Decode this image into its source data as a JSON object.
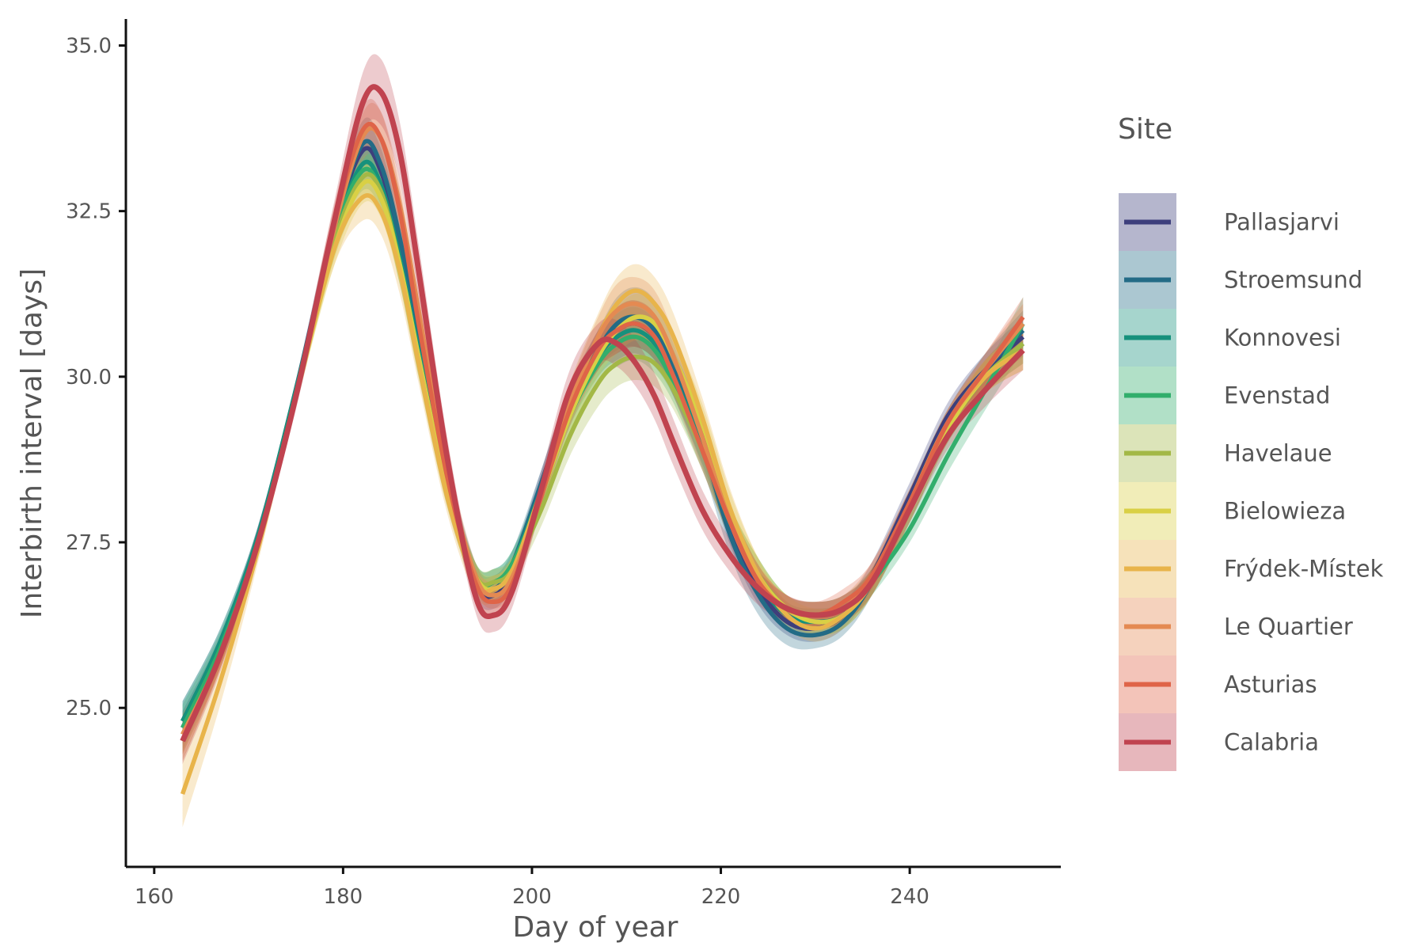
{
  "chart_data": {
    "type": "line",
    "xlabel": "Day of year",
    "ylabel": "Interbirth interval [days]",
    "xlim": [
      157,
      256
    ],
    "ylim": [
      22.6,
      35.4
    ],
    "x_ticks": [
      160,
      180,
      200,
      220,
      240
    ],
    "y_ticks": [
      25.0,
      27.5,
      30.0,
      32.5,
      35.0
    ],
    "x_tick_labels": [
      "160",
      "180",
      "200",
      "220",
      "240"
    ],
    "y_tick_labels": [
      "25.0",
      "27.5",
      "30.0",
      "32.5",
      "35.0"
    ],
    "grid": false,
    "legend": {
      "title": "Site",
      "position": "right"
    },
    "x": [
      163,
      167,
      171,
      175,
      179,
      182,
      184,
      186,
      188,
      191,
      194,
      196,
      198,
      201,
      204,
      207,
      209,
      211,
      213,
      215,
      218,
      221,
      224,
      227,
      230,
      233,
      236,
      240,
      244,
      248,
      252
    ],
    "series": [
      {
        "name": "Pallasjarvi",
        "color": "#3d3f7c",
        "values": [
          24.7,
          25.9,
          27.6,
          29.8,
          32.2,
          33.4,
          33.1,
          32.0,
          30.5,
          28.4,
          26.9,
          26.7,
          27.1,
          28.4,
          29.6,
          30.4,
          30.7,
          30.8,
          30.6,
          30.1,
          29.1,
          27.7,
          26.8,
          26.3,
          26.2,
          26.4,
          27.0,
          28.2,
          29.4,
          30.1,
          30.6
        ],
        "band": [
          0.25,
          0.2,
          0.15,
          0.15,
          0.25,
          0.35,
          0.35,
          0.3,
          0.3,
          0.25,
          0.2,
          0.2,
          0.2,
          0.2,
          0.25,
          0.3,
          0.35,
          0.35,
          0.35,
          0.3,
          0.3,
          0.25,
          0.25,
          0.2,
          0.2,
          0.2,
          0.2,
          0.2,
          0.2,
          0.25,
          0.3
        ]
      },
      {
        "name": "Stroemsund",
        "color": "#236b86",
        "values": [
          24.8,
          26.0,
          27.6,
          29.8,
          32.2,
          33.5,
          33.2,
          32.1,
          30.6,
          28.5,
          27.0,
          26.8,
          27.2,
          28.4,
          29.6,
          30.4,
          30.8,
          30.9,
          30.7,
          30.1,
          29.0,
          27.6,
          26.7,
          26.2,
          26.1,
          26.3,
          26.9,
          28.1,
          29.3,
          30.1,
          30.7
        ],
        "band": [
          0.3,
          0.2,
          0.15,
          0.15,
          0.25,
          0.35,
          0.35,
          0.3,
          0.3,
          0.25,
          0.2,
          0.2,
          0.2,
          0.2,
          0.25,
          0.3,
          0.4,
          0.45,
          0.45,
          0.4,
          0.35,
          0.3,
          0.3,
          0.25,
          0.2,
          0.2,
          0.2,
          0.2,
          0.2,
          0.25,
          0.3
        ]
      },
      {
        "name": "Konnovesi",
        "color": "#16917c",
        "values": [
          24.8,
          26.0,
          27.6,
          29.8,
          32.1,
          33.2,
          32.9,
          31.8,
          30.4,
          28.4,
          27.0,
          26.9,
          27.2,
          28.3,
          29.5,
          30.3,
          30.6,
          30.7,
          30.5,
          30.0,
          29.0,
          27.8,
          26.9,
          26.4,
          26.3,
          26.4,
          26.9,
          28.0,
          29.2,
          30.0,
          30.5
        ],
        "band": [
          0.3,
          0.2,
          0.15,
          0.15,
          0.25,
          0.3,
          0.3,
          0.3,
          0.3,
          0.25,
          0.2,
          0.2,
          0.2,
          0.2,
          0.25,
          0.3,
          0.35,
          0.35,
          0.35,
          0.3,
          0.3,
          0.25,
          0.25,
          0.2,
          0.2,
          0.2,
          0.2,
          0.2,
          0.2,
          0.25,
          0.3
        ]
      },
      {
        "name": "Evenstad",
        "color": "#32ae6c",
        "values": [
          24.7,
          25.9,
          27.5,
          29.7,
          32.1,
          33.1,
          32.8,
          31.7,
          30.3,
          28.3,
          27.0,
          26.9,
          27.2,
          28.2,
          29.4,
          30.2,
          30.5,
          30.6,
          30.4,
          29.9,
          28.9,
          27.8,
          27.0,
          26.5,
          26.4,
          26.5,
          26.9,
          27.7,
          28.8,
          29.8,
          30.8
        ],
        "band": [
          0.35,
          0.25,
          0.15,
          0.15,
          0.25,
          0.3,
          0.3,
          0.3,
          0.3,
          0.25,
          0.2,
          0.2,
          0.2,
          0.2,
          0.25,
          0.3,
          0.35,
          0.35,
          0.35,
          0.3,
          0.3,
          0.25,
          0.25,
          0.2,
          0.2,
          0.2,
          0.2,
          0.2,
          0.25,
          0.3,
          0.4
        ]
      },
      {
        "name": "Havelaue",
        "color": "#a3b846",
        "values": [
          24.6,
          25.8,
          27.5,
          29.7,
          32.0,
          33.0,
          32.8,
          31.7,
          30.3,
          28.3,
          27.0,
          26.9,
          27.1,
          28.0,
          29.1,
          29.9,
          30.2,
          30.3,
          30.2,
          29.8,
          28.9,
          27.8,
          27.0,
          26.5,
          26.4,
          26.5,
          26.9,
          28.0,
          29.2,
          30.0,
          30.5
        ],
        "band": [
          0.3,
          0.2,
          0.15,
          0.15,
          0.25,
          0.3,
          0.3,
          0.3,
          0.3,
          0.25,
          0.2,
          0.2,
          0.2,
          0.25,
          0.3,
          0.35,
          0.35,
          0.35,
          0.35,
          0.3,
          0.3,
          0.25,
          0.25,
          0.2,
          0.2,
          0.2,
          0.2,
          0.2,
          0.2,
          0.25,
          0.3
        ]
      },
      {
        "name": "Bielowieza",
        "color": "#d9d045",
        "values": [
          24.5,
          25.8,
          27.5,
          29.7,
          31.9,
          32.9,
          32.7,
          31.7,
          30.3,
          28.3,
          27.0,
          26.8,
          27.1,
          28.2,
          29.4,
          30.3,
          30.7,
          30.9,
          30.8,
          30.3,
          29.3,
          28.0,
          27.0,
          26.5,
          26.3,
          26.4,
          26.9,
          28.0,
          29.2,
          30.0,
          30.4
        ],
        "band": [
          0.3,
          0.2,
          0.15,
          0.15,
          0.25,
          0.3,
          0.3,
          0.3,
          0.3,
          0.25,
          0.2,
          0.2,
          0.2,
          0.2,
          0.25,
          0.3,
          0.35,
          0.35,
          0.35,
          0.35,
          0.3,
          0.25,
          0.25,
          0.2,
          0.2,
          0.2,
          0.2,
          0.2,
          0.2,
          0.25,
          0.3
        ]
      },
      {
        "name": "Frýdek-Místek",
        "color": "#e8b44a",
        "values": [
          23.7,
          25.4,
          27.4,
          29.7,
          31.9,
          32.7,
          32.5,
          31.6,
          30.2,
          28.2,
          26.9,
          26.8,
          27.1,
          28.3,
          29.6,
          30.6,
          31.1,
          31.3,
          31.1,
          30.6,
          29.4,
          28.0,
          27.0,
          26.4,
          26.2,
          26.4,
          26.9,
          28.1,
          29.3,
          30.0,
          30.4
        ],
        "band": [
          0.5,
          0.35,
          0.2,
          0.15,
          0.25,
          0.35,
          0.35,
          0.35,
          0.3,
          0.25,
          0.2,
          0.2,
          0.2,
          0.2,
          0.3,
          0.35,
          0.4,
          0.4,
          0.4,
          0.35,
          0.3,
          0.3,
          0.25,
          0.2,
          0.2,
          0.2,
          0.2,
          0.2,
          0.2,
          0.25,
          0.3
        ]
      },
      {
        "name": "Le Quartier",
        "color": "#e48a52",
        "values": [
          24.6,
          25.8,
          27.5,
          29.7,
          32.2,
          33.6,
          33.6,
          32.6,
          31.0,
          28.6,
          27.0,
          26.7,
          27.0,
          28.2,
          29.6,
          30.6,
          31.0,
          31.1,
          30.9,
          30.3,
          29.1,
          27.8,
          26.9,
          26.5,
          26.4,
          26.5,
          27.0,
          28.1,
          29.3,
          30.1,
          30.8
        ],
        "band": [
          0.3,
          0.2,
          0.15,
          0.15,
          0.25,
          0.35,
          0.4,
          0.35,
          0.3,
          0.25,
          0.2,
          0.2,
          0.2,
          0.2,
          0.25,
          0.3,
          0.4,
          0.4,
          0.4,
          0.35,
          0.3,
          0.25,
          0.25,
          0.2,
          0.2,
          0.2,
          0.2,
          0.2,
          0.2,
          0.25,
          0.3
        ]
      },
      {
        "name": "Asturias",
        "color": "#df6448",
        "values": [
          24.5,
          25.8,
          27.5,
          29.7,
          32.3,
          33.7,
          33.6,
          32.5,
          30.8,
          28.5,
          26.9,
          26.6,
          26.9,
          28.2,
          29.5,
          30.4,
          30.7,
          30.8,
          30.6,
          30.0,
          28.9,
          27.8,
          26.9,
          26.5,
          26.4,
          26.6,
          27.0,
          28.1,
          29.3,
          30.1,
          30.9
        ],
        "band": [
          0.3,
          0.2,
          0.15,
          0.15,
          0.25,
          0.35,
          0.4,
          0.35,
          0.3,
          0.25,
          0.2,
          0.2,
          0.2,
          0.2,
          0.25,
          0.3,
          0.35,
          0.35,
          0.35,
          0.3,
          0.3,
          0.25,
          0.25,
          0.2,
          0.2,
          0.2,
          0.2,
          0.2,
          0.2,
          0.25,
          0.3
        ]
      },
      {
        "name": "Calabria",
        "color": "#c0434f",
        "values": [
          24.5,
          25.8,
          27.5,
          29.7,
          32.3,
          34.1,
          34.3,
          33.4,
          31.6,
          28.8,
          26.7,
          26.4,
          26.8,
          28.3,
          29.8,
          30.5,
          30.5,
          30.2,
          29.7,
          29.0,
          28.0,
          27.3,
          26.8,
          26.5,
          26.4,
          26.5,
          26.9,
          28.0,
          29.1,
          29.8,
          30.4
        ],
        "band": [
          0.35,
          0.25,
          0.15,
          0.2,
          0.3,
          0.45,
          0.5,
          0.45,
          0.4,
          0.3,
          0.25,
          0.25,
          0.25,
          0.25,
          0.3,
          0.3,
          0.35,
          0.35,
          0.35,
          0.35,
          0.3,
          0.25,
          0.25,
          0.2,
          0.2,
          0.2,
          0.2,
          0.2,
          0.2,
          0.25,
          0.3
        ]
      }
    ]
  }
}
